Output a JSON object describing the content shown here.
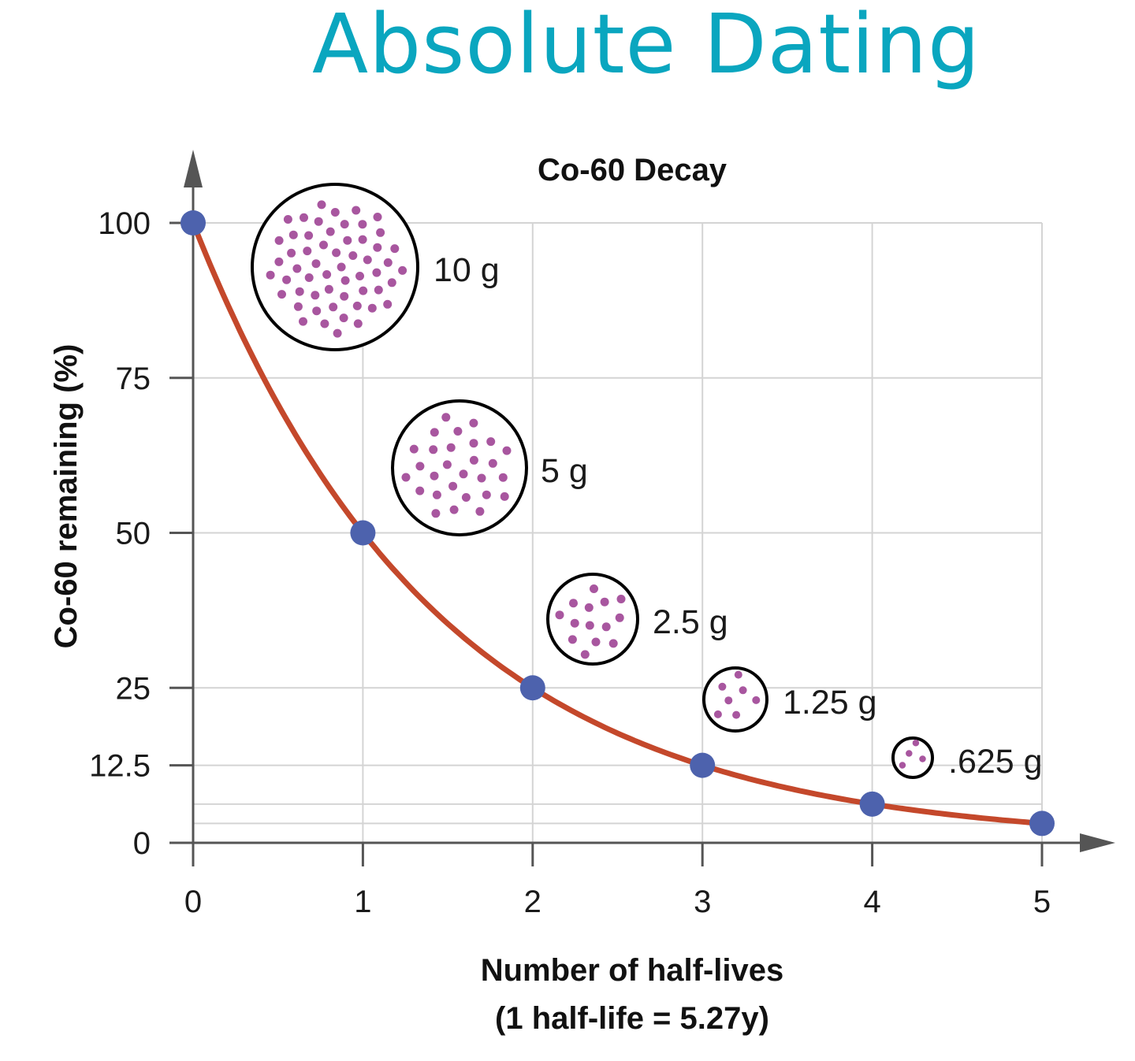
{
  "page": {
    "title": "Absolute Dating",
    "title_color": "#0aa6bf"
  },
  "chart_data": {
    "type": "line",
    "title": "Co-60 Decay",
    "xlabel": "Number of half-lives",
    "xlabel_sub": "(1 half-life = 5.27y)",
    "ylabel": "Co-60 remaining (%)",
    "x": [
      0,
      1,
      2,
      3,
      4,
      5
    ],
    "series": [
      {
        "values": [
          100,
          50,
          25,
          12.5,
          6.25,
          3.125
        ]
      }
    ],
    "xlim": [
      0,
      5
    ],
    "ylim": [
      0,
      100
    ],
    "xticks": [
      "0",
      "1",
      "2",
      "3",
      "4",
      "5"
    ],
    "yticks": [
      {
        "value": 0,
        "label": "0"
      },
      {
        "value": 12.5,
        "label": "12.5"
      },
      {
        "value": 25,
        "label": "25"
      },
      {
        "value": 50,
        "label": "50"
      },
      {
        "value": 75,
        "label": "75"
      },
      {
        "value": 100,
        "label": "100"
      }
    ],
    "extra_gridlines": [
      6.25,
      3.125
    ],
    "grid": true,
    "annotations": [
      {
        "label": "10 g",
        "grams": 10,
        "dots": 56
      },
      {
        "label": "5 g",
        "grams": 5,
        "dots": 28
      },
      {
        "label": "2.5 g",
        "grams": 2.5,
        "dots": 14
      },
      {
        "label": "1.25 g",
        "grams": 1.25,
        "dots": 7
      },
      {
        "label": ".625 g",
        "grams": 0.625,
        "dots": 4
      }
    ],
    "colors": {
      "curve": "#c4482b",
      "points": "#4d62ad",
      "dots": "#a8569f",
      "grid": "#d4d4d4",
      "axis": "#555555"
    }
  }
}
